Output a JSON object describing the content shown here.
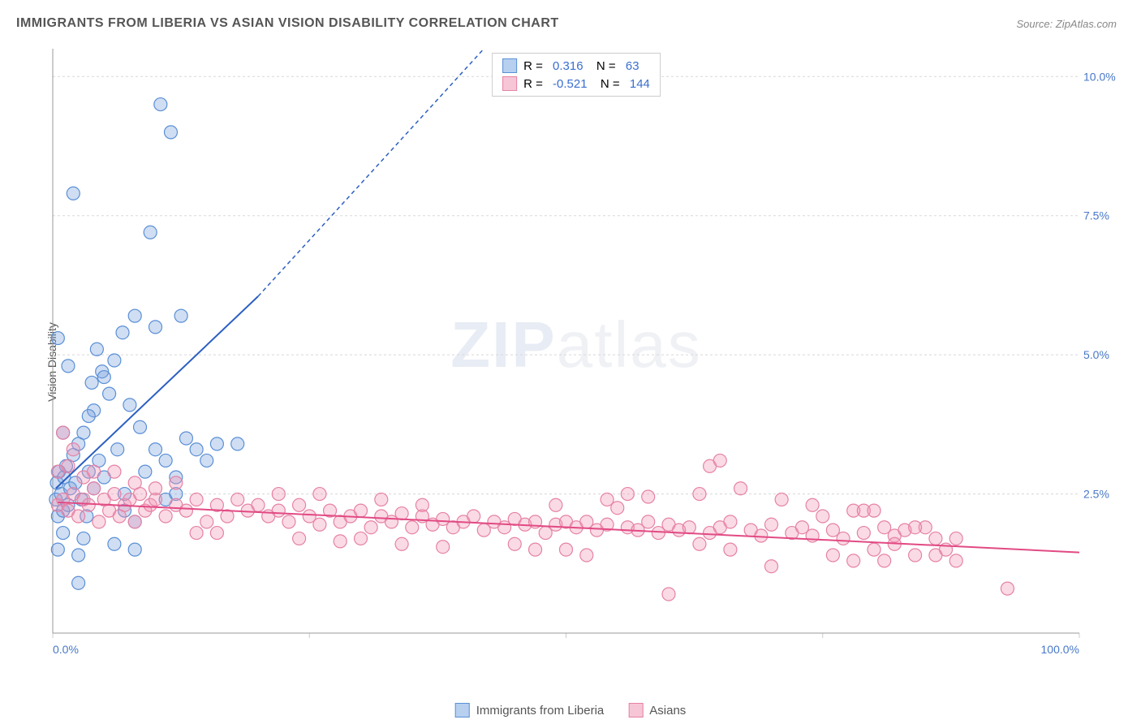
{
  "title": "IMMIGRANTS FROM LIBERIA VS ASIAN VISION DISABILITY CORRELATION CHART",
  "source": "Source: ZipAtlas.com",
  "watermark": {
    "bold": "ZIP",
    "rest": "atlas"
  },
  "chart": {
    "type": "scatter",
    "background_color": "#ffffff",
    "grid_color": "#d8d8d8",
    "grid_dash": "3,3",
    "axis_color": "#999999",
    "tick_color": "#cccccc",
    "xlim": [
      0,
      100
    ],
    "ylim": [
      0,
      10.5
    ],
    "x_ticks": [
      0,
      25,
      50,
      75,
      100
    ],
    "y_ticks": [
      2.5,
      5.0,
      7.5,
      10.0
    ],
    "y_tick_labels": [
      "2.5%",
      "5.0%",
      "7.5%",
      "10.0%"
    ],
    "x_min_label": "0.0%",
    "x_max_label": "100.0%",
    "y_axis_title": "Vision Disability",
    "y_tick_label_color": "#4878c8",
    "x_minmax_label_color": "#4878c8",
    "marker_radius": 8,
    "marker_stroke_width": 1.2,
    "trend_line_width": 2,
    "trend_dash": "5,4"
  },
  "series": [
    {
      "name": "Immigrants from Liberia",
      "fill": "rgba(120,160,220,0.35)",
      "stroke": "#5a8fd6",
      "swatch_fill": "#b7d0ef",
      "swatch_stroke": "#5a8fd6",
      "R": "0.316",
      "N": "63",
      "stat_color": "#3a6fd0",
      "trend": {
        "x1": 0.3,
        "y1": 2.6,
        "x2": 20,
        "y2": 6.05,
        "x2_dash": 42,
        "y2_dash": 10.5,
        "color": "#2b5fc2"
      },
      "points": [
        [
          0.3,
          2.4
        ],
        [
          0.5,
          2.1
        ],
        [
          0.4,
          2.7
        ],
        [
          0.6,
          2.9
        ],
        [
          0.8,
          2.5
        ],
        [
          1.0,
          2.2
        ],
        [
          1.1,
          2.8
        ],
        [
          1.3,
          3.0
        ],
        [
          1.5,
          2.3
        ],
        [
          1.7,
          2.6
        ],
        [
          2.0,
          3.2
        ],
        [
          2.2,
          2.7
        ],
        [
          2.5,
          3.4
        ],
        [
          2.8,
          2.4
        ],
        [
          3.0,
          3.6
        ],
        [
          3.3,
          2.1
        ],
        [
          3.5,
          2.9
        ],
        [
          3.8,
          4.5
        ],
        [
          4.0,
          2.6
        ],
        [
          4.3,
          5.1
        ],
        [
          4.5,
          3.1
        ],
        [
          4.8,
          4.7
        ],
        [
          5.0,
          2.8
        ],
        [
          5.5,
          4.3
        ],
        [
          6.0,
          4.9
        ],
        [
          6.3,
          3.3
        ],
        [
          6.8,
          5.4
        ],
        [
          7.0,
          2.2
        ],
        [
          7.5,
          4.1
        ],
        [
          8.0,
          5.7
        ],
        [
          8.5,
          3.7
        ],
        [
          9.0,
          2.9
        ],
        [
          9.5,
          7.2
        ],
        [
          10,
          3.3
        ],
        [
          10.5,
          9.5
        ],
        [
          11,
          3.1
        ],
        [
          11.5,
          9.0
        ],
        [
          12,
          2.8
        ],
        [
          12.5,
          5.7
        ],
        [
          13,
          3.5
        ],
        [
          14,
          3.3
        ],
        [
          15,
          3.1
        ],
        [
          16,
          3.4
        ],
        [
          18,
          3.4
        ],
        [
          0.5,
          1.5
        ],
        [
          1,
          1.8
        ],
        [
          2.5,
          1.4
        ],
        [
          3,
          1.7
        ],
        [
          4,
          4.0
        ],
        [
          5,
          4.6
        ],
        [
          6,
          1.6
        ],
        [
          7,
          2.5
        ],
        [
          8,
          1.5
        ],
        [
          0.5,
          5.3
        ],
        [
          1.5,
          4.8
        ],
        [
          2,
          7.9
        ],
        [
          1,
          3.6
        ],
        [
          3.5,
          3.9
        ],
        [
          10,
          5.5
        ],
        [
          12,
          2.5
        ],
        [
          2.5,
          0.9
        ],
        [
          8,
          2.0
        ],
        [
          11,
          2.4
        ]
      ]
    },
    {
      "name": "Asians",
      "fill": "rgba(240,150,180,0.35)",
      "stroke": "#e682a5",
      "swatch_fill": "#f6c6d6",
      "swatch_stroke": "#e682a5",
      "R": "-0.521",
      "N": "144",
      "stat_color": "#3a6fd0",
      "trend": {
        "x1": 0.5,
        "y1": 2.35,
        "x2": 100,
        "y2": 1.45,
        "color": "#e24a83"
      },
      "points": [
        [
          0.5,
          2.3
        ],
        [
          1,
          2.4
        ],
        [
          1.5,
          2.2
        ],
        [
          2,
          2.5
        ],
        [
          2.5,
          2.1
        ],
        [
          3,
          2.4
        ],
        [
          3.5,
          2.3
        ],
        [
          4,
          2.6
        ],
        [
          4.5,
          2.0
        ],
        [
          5,
          2.4
        ],
        [
          5.5,
          2.2
        ],
        [
          6,
          2.5
        ],
        [
          6.5,
          2.1
        ],
        [
          7,
          2.3
        ],
        [
          7.5,
          2.4
        ],
        [
          8,
          2.0
        ],
        [
          8.5,
          2.5
        ],
        [
          9,
          2.2
        ],
        [
          9.5,
          2.3
        ],
        [
          10,
          2.4
        ],
        [
          11,
          2.1
        ],
        [
          12,
          2.3
        ],
        [
          13,
          2.2
        ],
        [
          14,
          2.4
        ],
        [
          15,
          2.0
        ],
        [
          16,
          2.3
        ],
        [
          17,
          2.1
        ],
        [
          18,
          2.4
        ],
        [
          19,
          2.2
        ],
        [
          20,
          2.3
        ],
        [
          21,
          2.1
        ],
        [
          22,
          2.2
        ],
        [
          23,
          2.0
        ],
        [
          24,
          2.3
        ],
        [
          25,
          2.1
        ],
        [
          26,
          1.95
        ],
        [
          27,
          2.2
        ],
        [
          28,
          2.0
        ],
        [
          29,
          2.1
        ],
        [
          30,
          2.2
        ],
        [
          31,
          1.9
        ],
        [
          32,
          2.1
        ],
        [
          33,
          2.0
        ],
        [
          34,
          2.15
        ],
        [
          35,
          1.9
        ],
        [
          36,
          2.1
        ],
        [
          37,
          1.95
        ],
        [
          38,
          2.05
        ],
        [
          39,
          1.9
        ],
        [
          40,
          2.0
        ],
        [
          41,
          2.1
        ],
        [
          42,
          1.85
        ],
        [
          43,
          2.0
        ],
        [
          44,
          1.9
        ],
        [
          45,
          2.05
        ],
        [
          46,
          1.95
        ],
        [
          47,
          2.0
        ],
        [
          48,
          1.8
        ],
        [
          49,
          1.95
        ],
        [
          50,
          2.0
        ],
        [
          51,
          1.9
        ],
        [
          52,
          2.0
        ],
        [
          53,
          1.85
        ],
        [
          54,
          1.95
        ],
        [
          55,
          2.25
        ],
        [
          56,
          1.9
        ],
        [
          57,
          1.85
        ],
        [
          58,
          2.0
        ],
        [
          59,
          1.8
        ],
        [
          60,
          1.95
        ],
        [
          61,
          1.85
        ],
        [
          62,
          1.9
        ],
        [
          63,
          2.5
        ],
        [
          64,
          1.8
        ],
        [
          65,
          1.9
        ],
        [
          66,
          2.0
        ],
        [
          67,
          2.6
        ],
        [
          68,
          1.85
        ],
        [
          69,
          1.75
        ],
        [
          70,
          1.95
        ],
        [
          71,
          2.4
        ],
        [
          72,
          1.8
        ],
        [
          73,
          1.9
        ],
        [
          74,
          1.75
        ],
        [
          75,
          2.1
        ],
        [
          76,
          1.85
        ],
        [
          77,
          1.7
        ],
        [
          78,
          2.2
        ],
        [
          79,
          1.8
        ],
        [
          80,
          1.5
        ],
        [
          81,
          1.9
        ],
        [
          82,
          1.75
        ],
        [
          83,
          1.85
        ],
        [
          84,
          1.4
        ],
        [
          85,
          1.9
        ],
        [
          86,
          1.7
        ],
        [
          87,
          1.5
        ],
        [
          88,
          1.3
        ],
        [
          2,
          3.3
        ],
        [
          1,
          3.6
        ],
        [
          0.5,
          2.9
        ],
        [
          1.5,
          3.0
        ],
        [
          3,
          2.8
        ],
        [
          4,
          2.9
        ],
        [
          64,
          3.0
        ],
        [
          65,
          3.1
        ],
        [
          60,
          0.7
        ],
        [
          93,
          0.8
        ],
        [
          45,
          1.6
        ],
        [
          50,
          1.5
        ],
        [
          52,
          1.4
        ],
        [
          56,
          2.5
        ],
        [
          58,
          2.45
        ],
        [
          47,
          1.5
        ],
        [
          49,
          2.3
        ],
        [
          54,
          2.4
        ],
        [
          63,
          1.6
        ],
        [
          66,
          1.5
        ],
        [
          70,
          1.2
        ],
        [
          74,
          2.3
        ],
        [
          76,
          1.4
        ],
        [
          78,
          1.3
        ],
        [
          79,
          2.2
        ],
        [
          80,
          2.2
        ],
        [
          81,
          1.3
        ],
        [
          82,
          1.6
        ],
        [
          84,
          1.9
        ],
        [
          86,
          1.4
        ],
        [
          88,
          1.7
        ],
        [
          6,
          2.9
        ],
        [
          8,
          2.7
        ],
        [
          10,
          2.6
        ],
        [
          12,
          2.7
        ],
        [
          14,
          1.8
        ],
        [
          16,
          1.8
        ],
        [
          22,
          2.5
        ],
        [
          24,
          1.7
        ],
        [
          26,
          2.5
        ],
        [
          28,
          1.65
        ],
        [
          30,
          1.7
        ],
        [
          32,
          2.4
        ],
        [
          34,
          1.6
        ],
        [
          36,
          2.3
        ],
        [
          38,
          1.55
        ]
      ]
    }
  ],
  "bottom_legend": [
    {
      "label": "Immigrants from Liberia",
      "fill": "#b7d0ef",
      "stroke": "#5a8fd6"
    },
    {
      "label": "Asians",
      "fill": "#f6c6d6",
      "stroke": "#e682a5"
    }
  ]
}
